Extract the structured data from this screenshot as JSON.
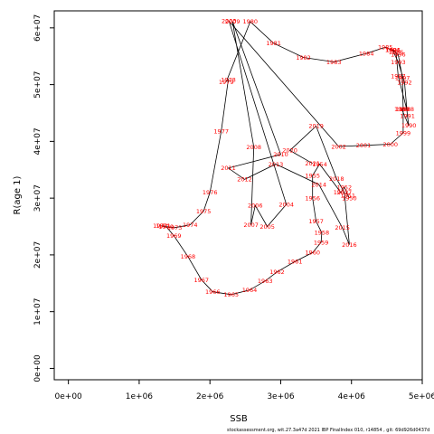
{
  "footer": "stockassessment.org, wit.27.3a47d 2021 IBP FinalIndex 010, r14854 , git: 69d926d0437d",
  "chart_data": {
    "type": "line",
    "title": "",
    "xlabel": "SSB",
    "ylabel": "R(age 1)",
    "xlim": [
      -200000,
      5000000
    ],
    "ylim": [
      -2000000,
      63000000
    ],
    "x_ticks": [
      0,
      1000000,
      2000000,
      3000000,
      4000000,
      5000000
    ],
    "x_tick_labels": [
      "0e+00",
      "1e+06",
      "2e+06",
      "3e+06",
      "4e+06",
      "5e+06"
    ],
    "y_ticks": [
      0,
      10000000,
      20000000,
      30000000,
      40000000,
      50000000,
      60000000
    ],
    "y_tick_labels": [
      "0e+00",
      "1e+07",
      "2e+07",
      "3e+07",
      "4e+07",
      "5e+07",
      "6e+07"
    ],
    "line_color": "#000000",
    "label_color": "#ff0000",
    "grid": false,
    "points": [
      {
        "year": "1950",
        "x": 3970000,
        "y": 30000000
      },
      {
        "year": "1951",
        "x": 3950000,
        "y": 30500000
      },
      {
        "year": "1952",
        "x": 3900000,
        "y": 31900000
      },
      {
        "year": "1953",
        "x": 3850000,
        "y": 31000000
      },
      {
        "year": "1954",
        "x": 3550000,
        "y": 36000000
      },
      {
        "year": "1955",
        "x": 3450000,
        "y": 34000000
      },
      {
        "year": "1956",
        "x": 3450000,
        "y": 30000000
      },
      {
        "year": "1957",
        "x": 3500000,
        "y": 25900000
      },
      {
        "year": "1958",
        "x": 3580000,
        "y": 23900000
      },
      {
        "year": "1959",
        "x": 3570000,
        "y": 22200000
      },
      {
        "year": "1960",
        "x": 3450000,
        "y": 20400000
      },
      {
        "year": "1961",
        "x": 3200000,
        "y": 18800000
      },
      {
        "year": "1962",
        "x": 2950000,
        "y": 17000000
      },
      {
        "year": "1963",
        "x": 2780000,
        "y": 15400000
      },
      {
        "year": "1964",
        "x": 2560000,
        "y": 13800000
      },
      {
        "year": "1965",
        "x": 2300000,
        "y": 13000000
      },
      {
        "year": "1966",
        "x": 2040000,
        "y": 13500000
      },
      {
        "year": "1967",
        "x": 1880000,
        "y": 15600000
      },
      {
        "year": "1968",
        "x": 1690000,
        "y": 19700000
      },
      {
        "year": "1969",
        "x": 1490000,
        "y": 23400000
      },
      {
        "year": "1970",
        "x": 1380000,
        "y": 25000000
      },
      {
        "year": "1971",
        "x": 1340000,
        "y": 25100000
      },
      {
        "year": "1972",
        "x": 1300000,
        "y": 25100000
      },
      {
        "year": "1973",
        "x": 1500000,
        "y": 24800000
      },
      {
        "year": "1974",
        "x": 1720000,
        "y": 25300000
      },
      {
        "year": "1975",
        "x": 1910000,
        "y": 27700000
      },
      {
        "year": "1976",
        "x": 2000000,
        "y": 31000000
      },
      {
        "year": "1977",
        "x": 2160000,
        "y": 41800000
      },
      {
        "year": "1978",
        "x": 2260000,
        "y": 50900000
      },
      {
        "year": "1979",
        "x": 2230000,
        "y": 50500000
      },
      {
        "year": "1980",
        "x": 2570000,
        "y": 61100000
      },
      {
        "year": "1981",
        "x": 2900000,
        "y": 57300000
      },
      {
        "year": "1982",
        "x": 3320000,
        "y": 54800000
      },
      {
        "year": "1983",
        "x": 3750000,
        "y": 54000000
      },
      {
        "year": "1984",
        "x": 4210000,
        "y": 55500000
      },
      {
        "year": "1985",
        "x": 4480000,
        "y": 56600000
      },
      {
        "year": "1986",
        "x": 4630000,
        "y": 55700000
      },
      {
        "year": "1987",
        "x": 4660000,
        "y": 51500000
      },
      {
        "year": "1988",
        "x": 4780000,
        "y": 45700000
      },
      {
        "year": "1989",
        "x": 4710000,
        "y": 45700000
      },
      {
        "year": "1990",
        "x": 4810000,
        "y": 42800000
      },
      {
        "year": "1991",
        "x": 4790000,
        "y": 44500000
      },
      {
        "year": "1992",
        "x": 4750000,
        "y": 50400000
      },
      {
        "year": "1993",
        "x": 4660000,
        "y": 54000000
      },
      {
        "year": "1994",
        "x": 4580000,
        "y": 56100000
      },
      {
        "year": "1995",
        "x": 4590000,
        "y": 56100000
      },
      {
        "year": "1996",
        "x": 4660000,
        "y": 55300000
      },
      {
        "year": "1997",
        "x": 4720000,
        "y": 51200000
      },
      {
        "year": "1998",
        "x": 4730000,
        "y": 45700000
      },
      {
        "year": "1999",
        "x": 4730000,
        "y": 41500000
      },
      {
        "year": "2000",
        "x": 4550000,
        "y": 39500000
      },
      {
        "year": "2001",
        "x": 4170000,
        "y": 39300000
      },
      {
        "year": "2002",
        "x": 3820000,
        "y": 39100000
      },
      {
        "year": "2003",
        "x": 2270000,
        "y": 61200000
      },
      {
        "year": "2004",
        "x": 3080000,
        "y": 28900000
      },
      {
        "year": "2005",
        "x": 2810000,
        "y": 25000000
      },
      {
        "year": "2006",
        "x": 2640000,
        "y": 28700000
      },
      {
        "year": "2007",
        "x": 2580000,
        "y": 25300000
      },
      {
        "year": "2008",
        "x": 2620000,
        "y": 39000000
      },
      {
        "year": "2009",
        "x": 2320000,
        "y": 61100000
      },
      {
        "year": "2010",
        "x": 3000000,
        "y": 37700000
      },
      {
        "year": "2011",
        "x": 2260000,
        "y": 35300000
      },
      {
        "year": "2012",
        "x": 2490000,
        "y": 33300000
      },
      {
        "year": "2013",
        "x": 2930000,
        "y": 36000000
      },
      {
        "year": "2014",
        "x": 3540000,
        "y": 32400000
      },
      {
        "year": "2015",
        "x": 3870000,
        "y": 24800000
      },
      {
        "year": "2016",
        "x": 3970000,
        "y": 21800000
      },
      {
        "year": "2017",
        "x": 3900000,
        "y": 31000000
      },
      {
        "year": "2018",
        "x": 3790000,
        "y": 33400000
      },
      {
        "year": "2019",
        "x": 3500000,
        "y": 42700000
      },
      {
        "year": "2020",
        "x": 3130000,
        "y": 38400000
      },
      {
        "year": "2021",
        "x": 3450000,
        "y": 36100000
      }
    ]
  }
}
